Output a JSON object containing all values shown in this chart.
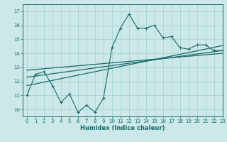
{
  "xlabel": "Humidex (Indice chaleur)",
  "xlim": [
    -0.5,
    23
  ],
  "ylim": [
    9.5,
    17.5
  ],
  "xticks": [
    0,
    1,
    2,
    3,
    4,
    5,
    6,
    7,
    8,
    9,
    10,
    11,
    12,
    13,
    14,
    15,
    16,
    17,
    18,
    19,
    20,
    21,
    22,
    23
  ],
  "yticks": [
    10,
    11,
    12,
    13,
    14,
    15,
    16,
    17
  ],
  "line_color": "#1a6b6b",
  "bg_color": "#cce8e8",
  "grid_color": "#aad4d4",
  "main_x": [
    0,
    1,
    2,
    3,
    4,
    5,
    6,
    7,
    8,
    9,
    10,
    11,
    12,
    13,
    14,
    15,
    16,
    17,
    18,
    19,
    20,
    21,
    22,
    23
  ],
  "main_y": [
    11.0,
    12.5,
    12.7,
    11.7,
    10.5,
    11.1,
    9.8,
    10.3,
    9.8,
    10.8,
    14.4,
    15.8,
    16.8,
    15.8,
    15.8,
    16.0,
    15.1,
    15.2,
    14.4,
    14.3,
    14.6,
    14.6,
    14.2,
    14.2
  ],
  "trend1_x": [
    0,
    23
  ],
  "trend1_y": [
    11.7,
    14.55
  ],
  "trend2_x": [
    0,
    23
  ],
  "trend2_y": [
    12.3,
    14.2
  ],
  "trend3_x": [
    0,
    23
  ],
  "trend3_y": [
    12.8,
    14.0
  ]
}
